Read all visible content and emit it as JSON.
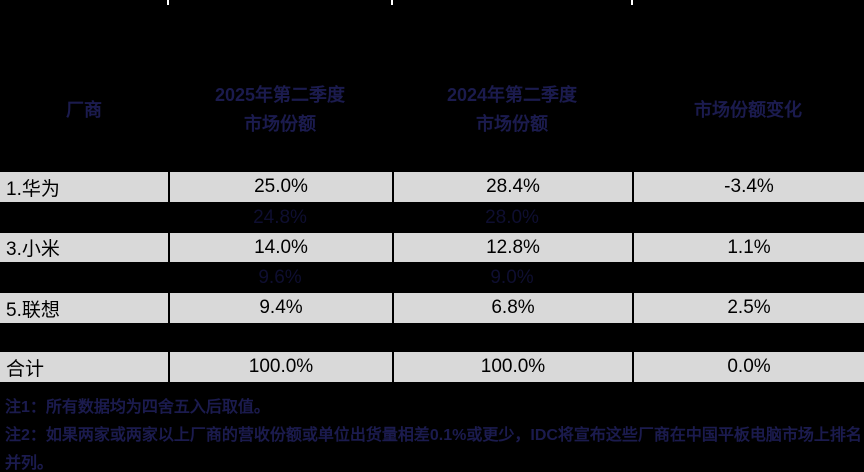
{
  "colors": {
    "page_background": "#000000",
    "light_row_background": "#d9d9d9",
    "light_row_text": "#000000",
    "dim_header_text": "#1b1b4e",
    "hidden_row_value_text": "#0e0e30",
    "top_tick_marks": "#ffffff"
  },
  "chart_data": {
    "type": "table",
    "title": "",
    "columns": [
      "厂商",
      "2025年第二季度市场份额",
      "2024年第二季度市场份额",
      "市场份额变化"
    ],
    "column_header_lines": [
      [
        "厂商"
      ],
      [
        "2025年第二季度",
        "市场份额"
      ],
      [
        "2024年第二季度",
        "市场份额"
      ],
      [
        "市场份额变化"
      ]
    ],
    "rows": [
      [
        "1.华为",
        "25.0%",
        "28.4%",
        "-3.4%"
      ],
      [
        "",
        "24.8%",
        "28.0%",
        ""
      ],
      [
        "3.小米",
        "14.0%",
        "12.8%",
        "1.1%"
      ],
      [
        "",
        "9.6%",
        "9.0%",
        ""
      ],
      [
        "5.联想",
        "9.4%",
        "6.8%",
        "2.5%"
      ],
      [
        "",
        "",
        "",
        ""
      ],
      [
        "合计",
        "100.0%",
        "100.0%",
        "0.0%"
      ]
    ],
    "hidden_row_indices": [
      1,
      3,
      5
    ],
    "legend_position": "none",
    "grid": "table-borders"
  },
  "footnote_lines": [
    "注1：所有数据均为四舍五入后取值。",
    "注2：如果两家或两家以上厂商的营收份额或单位出货量相差0.1%或更少，IDC将宣布这些厂商在中国平板电脑市场上排名",
    "并列。"
  ]
}
